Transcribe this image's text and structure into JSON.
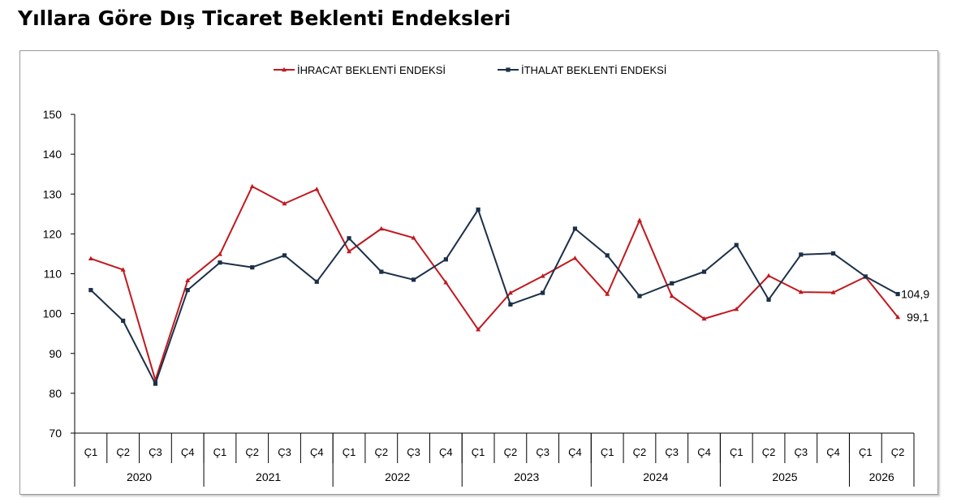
{
  "page": {
    "title": "Yıllara Göre Dış Ticaret Beklenti Endeksleri"
  },
  "chart_data": {
    "type": "line",
    "title": "Yıllara Göre Dış Ticaret Beklenti Endeksleri",
    "ylim": [
      70,
      150
    ],
    "yticks": [
      70,
      80,
      90,
      100,
      110,
      120,
      130,
      140,
      150
    ],
    "legend_position": "top-center",
    "categories": [
      "Ç1",
      "Ç2",
      "Ç3",
      "Ç4",
      "Ç1",
      "Ç2",
      "Ç3",
      "Ç4",
      "Ç1",
      "Ç2",
      "Ç3",
      "Ç4",
      "Ç1",
      "Ç2",
      "Ç3",
      "Ç4",
      "Ç1",
      "Ç2",
      "Ç3",
      "Ç4",
      "Ç1",
      "Ç2",
      "Ç3",
      "Ç4",
      "Ç1",
      "Ç2"
    ],
    "years": [
      {
        "label": "2020",
        "count": 4
      },
      {
        "label": "2021",
        "count": 4
      },
      {
        "label": "2022",
        "count": 4
      },
      {
        "label": "2023",
        "count": 4
      },
      {
        "label": "2024",
        "count": 4
      },
      {
        "label": "2025",
        "count": 4
      },
      {
        "label": "2026",
        "count": 2
      }
    ],
    "series": [
      {
        "name": "İHRACAT BEKLENTİ ENDEKSİ",
        "color": "#c0191f",
        "marker": "triangle",
        "values": [
          113.8,
          111.0,
          83.3,
          108.3,
          114.9,
          131.9,
          127.6,
          131.2,
          115.6,
          121.3,
          119.0,
          107.8,
          96.0,
          105.2,
          109.4,
          113.9,
          104.9,
          123.4,
          104.4,
          98.7,
          101.1,
          109.5,
          105.4,
          105.3,
          109.2,
          99.1
        ],
        "end_label": "99,1"
      },
      {
        "name": "İTHALAT BEKLENTİ ENDEKSİ",
        "color": "#1c3048",
        "marker": "square",
        "values": [
          105.9,
          98.2,
          82.4,
          105.9,
          112.8,
          111.6,
          114.6,
          108.0,
          118.9,
          110.5,
          108.5,
          113.6,
          126.1,
          102.3,
          105.2,
          121.3,
          114.6,
          104.4,
          107.6,
          110.5,
          117.2,
          103.5,
          114.8,
          115.1,
          109.3,
          104.9
        ],
        "end_label": "104,9"
      }
    ]
  }
}
